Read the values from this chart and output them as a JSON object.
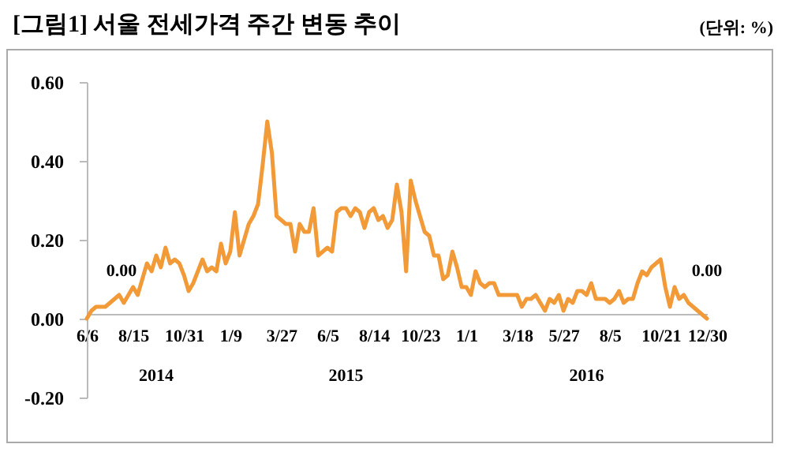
{
  "chart_data": {
    "type": "line",
    "title": "[그림1] 서울 전세가격 주간 변동 추이",
    "categories": [
      "6/6",
      null,
      null,
      null,
      null,
      null,
      null,
      null,
      null,
      null,
      "8/15",
      null,
      null,
      null,
      null,
      null,
      null,
      null,
      null,
      null,
      null,
      "10/31",
      null,
      null,
      null,
      null,
      null,
      null,
      null,
      null,
      null,
      "1/9",
      null,
      null,
      null,
      null,
      null,
      null,
      null,
      null,
      null,
      null,
      "3/27",
      null,
      null,
      null,
      null,
      null,
      null,
      null,
      null,
      null,
      "6/5",
      null,
      null,
      null,
      null,
      null,
      null,
      null,
      null,
      null,
      "8/14",
      null,
      null,
      null,
      null,
      null,
      null,
      null,
      null,
      null,
      "10/23",
      null,
      null,
      null,
      null,
      null,
      null,
      null,
      null,
      null,
      "1/1",
      null,
      null,
      null,
      null,
      null,
      null,
      null,
      null,
      null,
      null,
      "3/18",
      null,
      null,
      null,
      null,
      null,
      null,
      null,
      null,
      null,
      "5/27",
      null,
      null,
      null,
      null,
      null,
      null,
      null,
      null,
      null,
      "8/5",
      null,
      null,
      null,
      null,
      null,
      null,
      null,
      null,
      null,
      null,
      "10/21",
      null,
      null,
      null,
      null,
      null,
      null,
      null,
      null,
      null,
      "12/30"
    ],
    "series": [
      {
        "color": "#f29a38",
        "values": [
          0,
          0.02,
          0.03,
          0.03,
          0.03,
          0.04,
          0.05,
          0.06,
          0.04,
          0.06,
          0.08,
          0.06,
          0.1,
          0.14,
          0.12,
          0.16,
          0.13,
          0.18,
          0.14,
          0.15,
          0.14,
          0.11,
          0.07,
          0.09,
          0.12,
          0.15,
          0.12,
          0.13,
          0.12,
          0.19,
          0.14,
          0.17,
          0.27,
          0.16,
          0.2,
          0.24,
          0.26,
          0.29,
          0.39,
          0.5,
          0.42,
          0.26,
          0.25,
          0.24,
          0.24,
          0.17,
          0.24,
          0.22,
          0.22,
          0.28,
          0.16,
          0.17,
          0.18,
          0.17,
          0.27,
          0.28,
          0.28,
          0.26,
          0.28,
          0.27,
          0.23,
          0.27,
          0.28,
          0.25,
          0.26,
          0.23,
          0.25,
          0.34,
          0.27,
          0.12,
          0.35,
          0.3,
          0.26,
          0.22,
          0.21,
          0.16,
          0.16,
          0.1,
          0.11,
          0.17,
          0.13,
          0.08,
          0.08,
          0.06,
          0.12,
          0.09,
          0.08,
          0.09,
          0.09,
          0.06,
          0.06,
          0.06,
          0.06,
          0.06,
          0.03,
          0.05,
          0.05,
          0.06,
          0.04,
          0.02,
          0.05,
          0.04,
          0.06,
          0.02,
          0.05,
          0.04,
          0.07,
          0.07,
          0.06,
          0.09,
          0.05,
          0.05,
          0.05,
          0.04,
          0.05,
          0.07,
          0.04,
          0.05,
          0.05,
          0.09,
          0.12,
          0.11,
          0.13,
          0.14,
          0.15,
          0.08,
          0.03,
          0.08,
          0.05,
          0.06,
          0.04,
          0.03,
          0.02,
          0.01,
          0.0
        ]
      }
    ],
    "ylim": [
      -0.2,
      0.6
    ],
    "yticks": [
      {
        "value": -0.2,
        "label": "-0.20"
      },
      {
        "value": 0,
        "label": "0.00"
      },
      {
        "value": 0.2,
        "label": "0.20"
      },
      {
        "value": 0.4,
        "label": "0.40"
      },
      {
        "value": 0.6,
        "label": "0.60"
      }
    ],
    "annotations": [
      "(단위: %)",
      {
        "text": "0.00",
        "x": "6/6",
        "y": 0
      },
      {
        "text": "0.00",
        "x": "12/30",
        "y": 0
      },
      "2014",
      "2015",
      "2016"
    ]
  }
}
